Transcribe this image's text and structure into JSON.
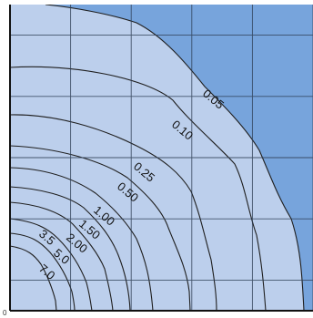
{
  "chart_data": {
    "type": "contour",
    "title": "",
    "xlabel": "",
    "ylabel": "",
    "grid": true,
    "grid_divisions": {
      "x": 5,
      "y": 5
    },
    "origin_label": "0",
    "colors": {
      "fill_inside": "#bccfec",
      "fill_outside": "#77a4dc",
      "line": "#1f1f1f",
      "grid": "#2f3f55",
      "text": "#111111"
    },
    "levels": [
      {
        "label": "0.05",
        "value": 0.05
      },
      {
        "label": "0.10",
        "value": 0.1
      },
      {
        "label": "0.25",
        "value": 0.25
      },
      {
        "label": "0.50",
        "value": 0.5
      },
      {
        "label": "1.00",
        "value": 1.0
      },
      {
        "label": "1.50",
        "value": 1.5
      },
      {
        "label": "2.00",
        "value": 2.0
      },
      {
        "label": "3.5",
        "value": 3.5
      },
      {
        "label": "5.0",
        "value": 5.0
      },
      {
        "label": "7.0",
        "value": 7.0
      }
    ]
  }
}
